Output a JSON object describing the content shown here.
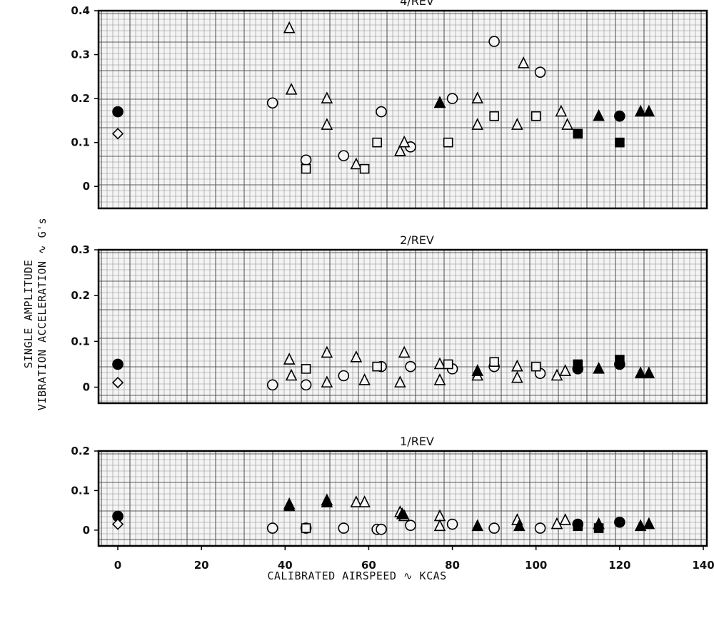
{
  "ylabel_line1": "SINGLE AMPLITUDE",
  "ylabel_line2": "VIBRATION ACCELERATION ∿ G's",
  "xlabel": "CALIBRATED AIRSPEED ∿ KCAS",
  "chart_data": [
    {
      "type": "scatter",
      "title": "4/REV",
      "xlim": [
        0,
        140
      ],
      "ylim": [
        -0.05,
        0.4
      ],
      "yticks": [
        "0",
        "0.1",
        "0.2",
        "0.3",
        "0.4"
      ],
      "ytick_values": [
        0,
        0.1,
        0.2,
        0.3,
        0.4
      ],
      "grid": true,
      "series": [
        {
          "marker": "circle",
          "filled": true,
          "points": [
            [
              0,
              0.17
            ],
            [
              120,
              0.16
            ]
          ]
        },
        {
          "marker": "diamond",
          "filled": false,
          "points": [
            [
              0,
              0.12
            ]
          ]
        },
        {
          "marker": "circle",
          "filled": false,
          "points": [
            [
              37,
              0.19
            ],
            [
              45,
              0.06
            ],
            [
              54,
              0.07
            ],
            [
              63,
              0.17
            ],
            [
              70,
              0.09
            ],
            [
              80,
              0.2
            ],
            [
              90,
              0.33
            ],
            [
              101,
              0.26
            ]
          ]
        },
        {
          "marker": "triangle",
          "filled": false,
          "points": [
            [
              41,
              0.36
            ],
            [
              41.5,
              0.22
            ],
            [
              50,
              0.2
            ],
            [
              50,
              0.14
            ],
            [
              57,
              0.05
            ],
            [
              67.5,
              0.08
            ],
            [
              68.5,
              0.1
            ],
            [
              77,
              0.19
            ],
            [
              86,
              0.2
            ],
            [
              86,
              0.14
            ],
            [
              95.5,
              0.14
            ],
            [
              97,
              0.28
            ],
            [
              106,
              0.17
            ],
            [
              107.5,
              0.14
            ]
          ]
        },
        {
          "marker": "square",
          "filled": false,
          "points": [
            [
              45,
              0.04
            ],
            [
              59,
              0.04
            ],
            [
              62,
              0.1
            ],
            [
              79,
              0.1
            ],
            [
              90,
              0.16
            ],
            [
              100,
              0.16
            ]
          ]
        },
        {
          "marker": "triangle",
          "filled": true,
          "points": [
            [
              77,
              0.19
            ],
            [
              115,
              0.16
            ],
            [
              125,
              0.17
            ],
            [
              127,
              0.17
            ]
          ]
        },
        {
          "marker": "square",
          "filled": true,
          "points": [
            [
              110,
              0.12
            ],
            [
              120,
              0.1
            ]
          ]
        }
      ]
    },
    {
      "type": "scatter",
      "title": "2/REV",
      "xlim": [
        0,
        140
      ],
      "ylim": [
        -0.035,
        0.3
      ],
      "yticks": [
        "0",
        "0.1",
        "0.2",
        "0.3"
      ],
      "ytick_values": [
        0,
        0.1,
        0.2,
        0.3
      ],
      "grid": true,
      "series": [
        {
          "marker": "circle",
          "filled": true,
          "points": [
            [
              0,
              0.05
            ]
          ]
        },
        {
          "marker": "diamond",
          "filled": false,
          "points": [
            [
              0,
              0.01
            ]
          ]
        },
        {
          "marker": "circle",
          "filled": false,
          "points": [
            [
              37,
              0.005
            ],
            [
              45,
              0.005
            ],
            [
              54,
              0.025
            ],
            [
              63,
              0.045
            ],
            [
              70,
              0.045
            ],
            [
              80,
              0.04
            ],
            [
              90,
              0.045
            ],
            [
              101,
              0.03
            ]
          ]
        },
        {
          "marker": "triangle",
          "filled": false,
          "points": [
            [
              41,
              0.06
            ],
            [
              41.5,
              0.025
            ],
            [
              50,
              0.075
            ],
            [
              50,
              0.01
            ],
            [
              57,
              0.065
            ],
            [
              59,
              0.015
            ],
            [
              67.5,
              0.01
            ],
            [
              68.5,
              0.075
            ],
            [
              77,
              0.05
            ],
            [
              77,
              0.015
            ],
            [
              86,
              0.025
            ],
            [
              95.5,
              0.045
            ],
            [
              95.5,
              0.02
            ],
            [
              105,
              0.025
            ],
            [
              107,
              0.035
            ]
          ]
        },
        {
          "marker": "square",
          "filled": false,
          "points": [
            [
              45,
              0.04
            ],
            [
              62,
              0.045
            ],
            [
              79,
              0.05
            ],
            [
              90,
              0.055
            ],
            [
              100,
              0.045
            ]
          ]
        },
        {
          "marker": "triangle",
          "filled": true,
          "points": [
            [
              86,
              0.035
            ],
            [
              115,
              0.04
            ],
            [
              125,
              0.03
            ],
            [
              127,
              0.03
            ]
          ]
        },
        {
          "marker": "circle",
          "filled": true,
          "points": [
            [
              110,
              0.04
            ],
            [
              120,
              0.05
            ]
          ]
        },
        {
          "marker": "square",
          "filled": true,
          "points": [
            [
              110,
              0.05
            ],
            [
              120,
              0.06
            ]
          ]
        }
      ]
    },
    {
      "type": "scatter",
      "title": "1/REV",
      "xlim": [
        0,
        140
      ],
      "ylim": [
        -0.04,
        0.2
      ],
      "yticks": [
        "0",
        "0.1",
        "0.2"
      ],
      "ytick_values": [
        0,
        0.1,
        0.2
      ],
      "grid": true,
      "xticks": [
        "0",
        "20",
        "40",
        "60",
        "80",
        "100",
        "120",
        "140"
      ],
      "xtick_values": [
        0,
        20,
        40,
        60,
        80,
        100,
        120,
        140
      ],
      "series": [
        {
          "marker": "circle",
          "filled": true,
          "points": [
            [
              0,
              0.035
            ]
          ]
        },
        {
          "marker": "diamond",
          "filled": false,
          "points": [
            [
              0,
              0.015
            ]
          ]
        },
        {
          "marker": "circle",
          "filled": false,
          "points": [
            [
              37,
              0.005
            ],
            [
              45,
              0.005
            ],
            [
              54,
              0.005
            ],
            [
              62,
              0.002
            ],
            [
              63,
              0.002
            ],
            [
              70,
              0.012
            ],
            [
              80,
              0.015
            ],
            [
              90,
              0.005
            ],
            [
              101,
              0.005
            ]
          ]
        },
        {
          "marker": "triangle",
          "filled": false,
          "points": [
            [
              41,
              0.065
            ],
            [
              50,
              0.075
            ],
            [
              57,
              0.07
            ],
            [
              59,
              0.07
            ],
            [
              67.5,
              0.045
            ],
            [
              68.5,
              0.035
            ],
            [
              77,
              0.035
            ],
            [
              77,
              0.01
            ],
            [
              95.5,
              0.025
            ],
            [
              105,
              0.015
            ],
            [
              107,
              0.025
            ]
          ]
        },
        {
          "marker": "square",
          "filled": false,
          "points": [
            [
              45,
              0.005
            ]
          ]
        },
        {
          "marker": "triangle",
          "filled": true,
          "points": [
            [
              41,
              0.06
            ],
            [
              50,
              0.07
            ],
            [
              68,
              0.04
            ],
            [
              86,
              0.01
            ],
            [
              96,
              0.01
            ],
            [
              115,
              0.015
            ],
            [
              125,
              0.01
            ],
            [
              127,
              0.015
            ]
          ]
        },
        {
          "marker": "circle",
          "filled": true,
          "points": [
            [
              110,
              0.015
            ],
            [
              120,
              0.02
            ]
          ]
        },
        {
          "marker": "square",
          "filled": true,
          "points": [
            [
              110,
              0.01
            ],
            [
              115,
              0.005
            ]
          ]
        }
      ]
    }
  ]
}
